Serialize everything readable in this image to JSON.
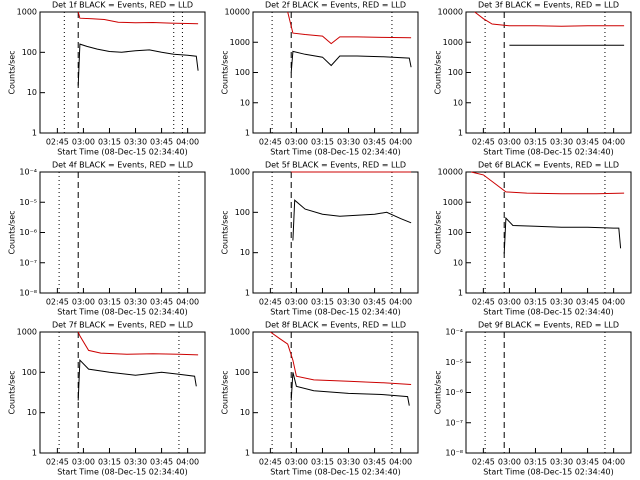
{
  "chart_data": [
    {
      "type": "line",
      "title": "Det 1f BLACK = Events, RED = LLD",
      "ylabel": "Counts/sec",
      "xlabel": "Start Time (08-Dec-15 02:34:40)",
      "xlim": [
        "02:35",
        "04:10"
      ],
      "xticks": [
        "02:45",
        "03:00",
        "03:15",
        "03:30",
        "03:45",
        "04:00"
      ],
      "ylim": [
        1,
        1000
      ],
      "yticks": [
        1,
        10,
        100,
        1000
      ],
      "log": true,
      "vlines": [
        {
          "x": "02:49",
          "style": "dotted"
        },
        {
          "x": "02:57",
          "style": "dashed"
        },
        {
          "x": "03:52",
          "style": "dotted"
        },
        {
          "x": "03:57",
          "style": "dotted"
        }
      ],
      "series": [
        {
          "name": "LLD",
          "color": "#cc0000",
          "x": [
            "02:57",
            "02:58",
            "03:05",
            "03:12",
            "03:20",
            "03:30",
            "03:40",
            "03:50",
            "04:00",
            "04:06"
          ],
          "values": [
            1000,
            700,
            680,
            650,
            560,
            540,
            550,
            530,
            520,
            510
          ]
        },
        {
          "name": "Events",
          "color": "#000000",
          "x": [
            "02:57",
            "02:58",
            "03:02",
            "03:08",
            "03:15",
            "03:22",
            "03:30",
            "03:38",
            "03:45",
            "03:52",
            "04:00",
            "04:05",
            "04:06"
          ],
          "values": [
            15,
            160,
            140,
            120,
            105,
            100,
            110,
            115,
            100,
            90,
            85,
            80,
            35
          ]
        }
      ]
    },
    {
      "type": "line",
      "title": "Det 2f BLACK = Events, RED = LLD",
      "ylabel": "Counts/sec",
      "xlabel": "Start Time (08-Dec-15 02:34:40)",
      "xlim": [
        "02:35",
        "04:10"
      ],
      "xticks": [
        "02:45",
        "03:00",
        "03:15",
        "03:30",
        "03:45",
        "04:00"
      ],
      "ylim": [
        1,
        10000
      ],
      "yticks": [
        1,
        10,
        100,
        1000,
        10000
      ],
      "log": true,
      "vlines": [
        {
          "x": "02:46",
          "style": "dotted"
        },
        {
          "x": "02:57",
          "style": "dashed"
        },
        {
          "x": "03:55",
          "style": "dotted"
        }
      ],
      "series": [
        {
          "name": "LLD",
          "color": "#cc0000",
          "x": [
            "02:55",
            "02:58",
            "03:05",
            "03:15",
            "03:20",
            "03:25",
            "03:35",
            "03:50",
            "04:06"
          ],
          "values": [
            10000,
            2000,
            1800,
            1600,
            900,
            1500,
            1500,
            1450,
            1400
          ]
        },
        {
          "name": "Events",
          "color": "#000000",
          "x": [
            "02:57",
            "02:58",
            "03:05",
            "03:15",
            "03:20",
            "03:25",
            "03:35",
            "03:50",
            "04:05",
            "04:06"
          ],
          "values": [
            100,
            500,
            400,
            320,
            170,
            350,
            350,
            330,
            300,
            150
          ]
        }
      ]
    },
    {
      "type": "line",
      "title": "Det 3f BLACK = Events, RED = LLD",
      "ylabel": "Counts/sec",
      "xlabel": "Start Time (08-Dec-15 02:34:40)",
      "xlim": [
        "02:35",
        "04:10"
      ],
      "xticks": [
        "02:45",
        "03:00",
        "03:15",
        "03:30",
        "03:45",
        "04:00"
      ],
      "ylim": [
        1,
        10000
      ],
      "yticks": [
        1,
        10,
        100,
        1000,
        10000
      ],
      "log": true,
      "vlines": [
        {
          "x": "02:46",
          "style": "dotted"
        },
        {
          "x": "02:57",
          "style": "dashed"
        },
        {
          "x": "03:55",
          "style": "dotted"
        }
      ],
      "series": [
        {
          "name": "LLD",
          "color": "#cc0000",
          "x": [
            "02:40",
            "02:45",
            "02:50",
            "03:00",
            "03:15",
            "03:30",
            "03:45",
            "04:06"
          ],
          "values": [
            10000,
            6000,
            4000,
            3500,
            3500,
            3400,
            3500,
            3500
          ]
        },
        {
          "name": "Events",
          "color": "#000000",
          "x": [
            "03:00",
            "03:15",
            "03:30",
            "03:45",
            "04:06"
          ],
          "values": [
            800,
            800,
            800,
            800,
            800
          ]
        }
      ]
    },
    {
      "type": "line",
      "title": "Det 4f BLACK = Events, RED = LLD",
      "ylabel": "Counts/sec",
      "xlabel": "Start Time (08-Dec-15 02:34:40)",
      "xlim": [
        "02:35",
        "04:10"
      ],
      "xticks": [
        "02:45",
        "03:00",
        "03:15",
        "03:30",
        "03:45",
        "04:00"
      ],
      "ylim": [
        1e-08,
        0.0001
      ],
      "yticks": [
        {
          "value": 1e-08,
          "label": "10⁻⁸"
        },
        {
          "value": 1e-07,
          "label": "10⁻⁷"
        },
        {
          "value": 1e-06,
          "label": "10⁻⁶"
        },
        {
          "value": 1e-05,
          "label": "10⁻⁵"
        },
        {
          "value": 0.0001,
          "label": "10⁻⁴"
        }
      ],
      "log": true,
      "vlines": [
        {
          "x": "02:46",
          "style": "dotted"
        },
        {
          "x": "02:57",
          "style": "dashed"
        },
        {
          "x": "03:55",
          "style": "dotted"
        }
      ],
      "series": []
    },
    {
      "type": "line",
      "title": "Det 5f BLACK = Events, RED = LLD",
      "ylabel": "Counts/sec",
      "xlabel": "Start Time (08-Dec-15 02:34:40)",
      "xlim": [
        "02:35",
        "04:10"
      ],
      "xticks": [
        "02:45",
        "03:00",
        "03:15",
        "03:30",
        "03:45",
        "04:00"
      ],
      "ylim": [
        1,
        1000
      ],
      "yticks": [
        1,
        10,
        100,
        1000
      ],
      "log": true,
      "vlines": [
        {
          "x": "02:46",
          "style": "dotted"
        },
        {
          "x": "02:57",
          "style": "dashed"
        },
        {
          "x": "03:55",
          "style": "dotted"
        }
      ],
      "series": [
        {
          "name": "LLD",
          "color": "#cc0000",
          "x": [
            "02:57",
            "03:15",
            "03:30",
            "03:45",
            "04:06"
          ],
          "values": [
            1000,
            1000,
            1000,
            1000,
            1000
          ]
        },
        {
          "name": "Events",
          "color": "#000000",
          "x": [
            "02:58",
            "02:59",
            "03:05",
            "03:15",
            "03:25",
            "03:35",
            "03:45",
            "03:52",
            "04:00",
            "04:06"
          ],
          "values": [
            20,
            200,
            120,
            90,
            80,
            85,
            90,
            100,
            70,
            55
          ]
        }
      ]
    },
    {
      "type": "line",
      "title": "Det 6f BLACK = Events, RED = LLD",
      "ylabel": "Counts/sec",
      "xlabel": "Start Time (08-Dec-15 02:34:40)",
      "xlim": [
        "02:35",
        "04:10"
      ],
      "xticks": [
        "02:45",
        "03:00",
        "03:15",
        "03:30",
        "03:45",
        "04:00"
      ],
      "ylim": [
        1,
        10000
      ],
      "yticks": [
        1,
        10,
        100,
        1000,
        10000
      ],
      "log": true,
      "vlines": [
        {
          "x": "02:46",
          "style": "dotted"
        },
        {
          "x": "02:57",
          "style": "dashed"
        },
        {
          "x": "03:55",
          "style": "dotted"
        }
      ],
      "series": [
        {
          "name": "LLD",
          "color": "#cc0000",
          "x": [
            "02:38",
            "02:45",
            "02:52",
            "02:58",
            "03:10",
            "03:30",
            "03:50",
            "04:06"
          ],
          "values": [
            10000,
            8000,
            4000,
            2200,
            2000,
            1900,
            1900,
            2000
          ]
        },
        {
          "name": "Events",
          "color": "#000000",
          "x": [
            "02:57",
            "02:58",
            "03:02",
            "03:15",
            "03:30",
            "03:45",
            "04:00",
            "04:03",
            "04:04"
          ],
          "values": [
            20,
            300,
            170,
            160,
            150,
            150,
            140,
            140,
            30
          ]
        }
      ]
    },
    {
      "type": "line",
      "title": "Det 7f BLACK = Events, RED = LLD",
      "ylabel": "Counts/sec",
      "xlabel": "Start Time (08-Dec-15 02:34:40)",
      "xlim": [
        "02:35",
        "04:10"
      ],
      "xticks": [
        "02:45",
        "03:00",
        "03:15",
        "03:30",
        "03:45",
        "04:00"
      ],
      "ylim": [
        1,
        1000
      ],
      "yticks": [
        1,
        10,
        100,
        1000
      ],
      "log": true,
      "vlines": [
        {
          "x": "02:46",
          "style": "dotted"
        },
        {
          "x": "02:57",
          "style": "dashed"
        },
        {
          "x": "03:55",
          "style": "dotted"
        }
      ],
      "series": [
        {
          "name": "LLD",
          "color": "#cc0000",
          "x": [
            "02:57",
            "02:58",
            "03:03",
            "03:10",
            "03:25",
            "03:40",
            "03:55",
            "04:06"
          ],
          "values": [
            1000,
            800,
            350,
            300,
            280,
            290,
            280,
            270
          ]
        },
        {
          "name": "Events",
          "color": "#000000",
          "x": [
            "02:57",
            "02:58",
            "03:03",
            "03:15",
            "03:30",
            "03:45",
            "03:55",
            "04:04",
            "04:05"
          ],
          "values": [
            20,
            200,
            120,
            100,
            85,
            100,
            90,
            80,
            45
          ]
        }
      ]
    },
    {
      "type": "line",
      "title": "Det 8f BLACK = Events, RED = LLD",
      "ylabel": "Counts/sec",
      "xlabel": "Start Time (08-Dec-15 02:34:40)",
      "xlim": [
        "02:35",
        "04:10"
      ],
      "xticks": [
        "02:45",
        "03:00",
        "03:15",
        "03:30",
        "03:45",
        "04:00"
      ],
      "ylim": [
        1,
        1000
      ],
      "yticks": [
        1,
        10,
        100,
        1000
      ],
      "log": true,
      "vlines": [
        {
          "x": "02:46",
          "style": "dotted"
        },
        {
          "x": "02:57",
          "style": "dashed"
        },
        {
          "x": "03:55",
          "style": "dotted"
        }
      ],
      "series": [
        {
          "name": "LLD",
          "color": "#cc0000",
          "x": [
            "02:45",
            "02:50",
            "02:55",
            "02:58",
            "03:00",
            "03:10",
            "03:30",
            "03:50",
            "04:06"
          ],
          "values": [
            1000,
            700,
            500,
            200,
            80,
            65,
            60,
            55,
            50
          ]
        },
        {
          "name": "Events",
          "color": "#000000",
          "x": [
            "02:57",
            "02:58",
            "03:00",
            "03:10",
            "03:30",
            "03:50",
            "04:04",
            "04:05"
          ],
          "values": [
            20,
            100,
            45,
            35,
            30,
            28,
            25,
            15
          ]
        }
      ]
    },
    {
      "type": "line",
      "title": "Det 9f BLACK = Events, RED = LLD",
      "ylabel": "Counts/sec",
      "xlabel": "Start Time (08-Dec-15 02:34:40)",
      "xlim": [
        "02:35",
        "04:10"
      ],
      "xticks": [
        "02:45",
        "03:00",
        "03:15",
        "03:30",
        "03:45",
        "04:00"
      ],
      "ylim": [
        1e-08,
        0.0001
      ],
      "yticks": [
        {
          "value": 1e-08,
          "label": "10⁻⁸"
        },
        {
          "value": 1e-07,
          "label": "10⁻⁷"
        },
        {
          "value": 1e-06,
          "label": "10⁻⁶"
        },
        {
          "value": 1e-05,
          "label": "10⁻⁵"
        },
        {
          "value": 0.0001,
          "label": "10⁻⁴"
        }
      ],
      "log": true,
      "vlines": [
        {
          "x": "02:46",
          "style": "dotted"
        },
        {
          "x": "02:57",
          "style": "dashed"
        },
        {
          "x": "03:55",
          "style": "dotted"
        }
      ],
      "series": []
    }
  ]
}
